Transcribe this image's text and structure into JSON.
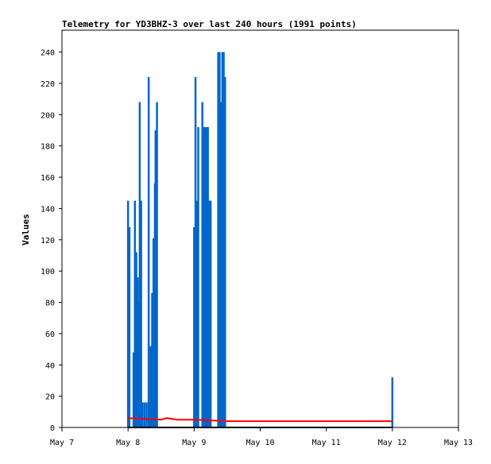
{
  "chart_data": {
    "type": "line",
    "title": "Telemetry for YD3BHZ-3 over last 240 hours (1991 points)",
    "xlabel": "",
    "ylabel": "Values",
    "xlim": [
      "May 7",
      "May 13"
    ],
    "ylim": [
      0,
      254
    ],
    "x_ticks": [
      "May 7",
      "May 8",
      "May 9",
      "May 10",
      "May 11",
      "May 12",
      "May 13"
    ],
    "y_ticks": [
      0,
      20,
      40,
      60,
      80,
      100,
      120,
      140,
      160,
      180,
      200,
      220,
      240
    ],
    "grid": false,
    "legend": "none",
    "colors": {
      "series_blue": "#0066cc",
      "series_red": "#ff0000",
      "series_black": "#000000"
    },
    "series": [
      {
        "color": "#0066cc",
        "style": "spikes",
        "points": [
          {
            "x": "May 8 00:00",
            "y": 145
          },
          {
            "x": "May 8 00:30",
            "y": 128
          },
          {
            "x": "May 8 02:00",
            "y": 48
          },
          {
            "x": "May 8 02:30",
            "y": 145
          },
          {
            "x": "May 8 03:00",
            "y": 112
          },
          {
            "x": "May 8 03:30",
            "y": 96
          },
          {
            "x": "May 8 04:00",
            "y": 80
          },
          {
            "x": "May 8 04:15",
            "y": 208
          },
          {
            "x": "May 8 04:45",
            "y": 145
          },
          {
            "x": "May 8 05:15",
            "y": 16
          },
          {
            "x": "May 8 06:00",
            "y": 16
          },
          {
            "x": "May 8 06:45",
            "y": 16
          },
          {
            "x": "May 8 07:30",
            "y": 224
          },
          {
            "x": "May 8 07:45",
            "y": 16
          },
          {
            "x": "May 8 08:15",
            "y": 52
          },
          {
            "x": "May 8 08:45",
            "y": 86
          },
          {
            "x": "May 8 09:15",
            "y": 121
          },
          {
            "x": "May 8 09:45",
            "y": 156
          },
          {
            "x": "May 8 10:00",
            "y": 190
          },
          {
            "x": "May 8 10:30",
            "y": 208
          },
          {
            "x": "May 9 00:00",
            "y": 128
          },
          {
            "x": "May 9 00:30",
            "y": 224
          },
          {
            "x": "May 9 01:00",
            "y": 145
          },
          {
            "x": "May 9 01:30",
            "y": 192
          },
          {
            "x": "May 9 03:00",
            "y": 208
          },
          {
            "x": "May 9 03:30",
            "y": 192
          },
          {
            "x": "May 9 04:00",
            "y": 192
          },
          {
            "x": "May 9 04:30",
            "y": 192
          },
          {
            "x": "May 9 05:00",
            "y": 192
          },
          {
            "x": "May 9 05:30",
            "y": 145
          },
          {
            "x": "May 9 06:00",
            "y": 145
          },
          {
            "x": "May 9 08:45",
            "y": 240
          },
          {
            "x": "May 9 09:15",
            "y": 240
          },
          {
            "x": "May 9 09:45",
            "y": 208
          },
          {
            "x": "May 9 10:15",
            "y": 240
          },
          {
            "x": "May 9 10:45",
            "y": 240
          },
          {
            "x": "May 9 11:15",
            "y": 224
          },
          {
            "x": "May 12 00:00",
            "y": 32
          }
        ]
      },
      {
        "color": "#ff0000",
        "style": "line",
        "points": [
          {
            "x": "May 8 00:00",
            "y": 6
          },
          {
            "x": "May 8 12:00",
            "y": 5
          },
          {
            "x": "May 8 14:00",
            "y": 6
          },
          {
            "x": "May 8 18:00",
            "y": 5
          },
          {
            "x": "May 9 00:00",
            "y": 5
          },
          {
            "x": "May 9 06:00",
            "y": 4.5
          },
          {
            "x": "May 9 12:00",
            "y": 4
          },
          {
            "x": "May 10 00:00",
            "y": 4
          },
          {
            "x": "May 11 00:00",
            "y": 4
          },
          {
            "x": "May 12 00:00",
            "y": 4
          }
        ]
      },
      {
        "color": "#000000",
        "style": "line",
        "points": [
          {
            "x": "May 8 00:00",
            "y": 0
          },
          {
            "x": "May 12 00:00",
            "y": 0
          }
        ]
      }
    ]
  }
}
